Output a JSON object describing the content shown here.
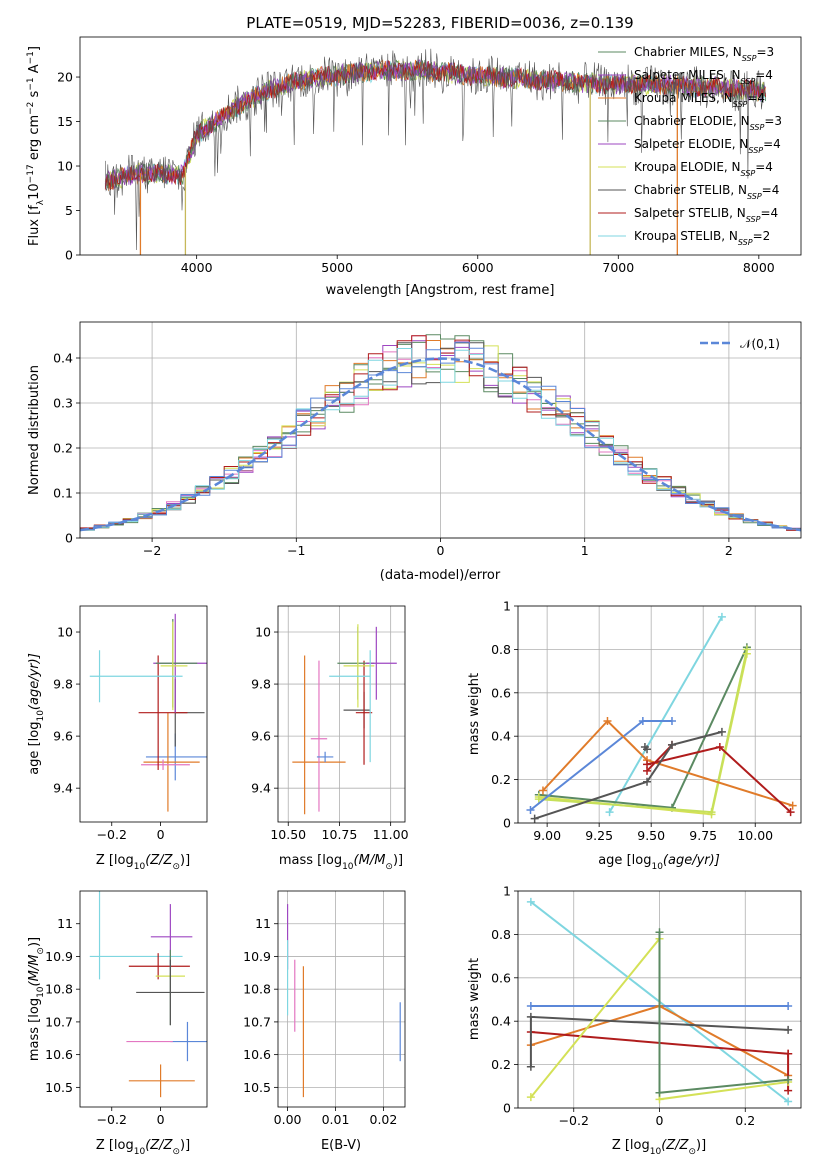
{
  "chart_data": [
    {
      "type": "line",
      "panel": "spectrum",
      "title": "PLATE=0519, MJD=52283, FIBERID=0036, z=0.139",
      "xlabel": "wavelength [Angstrom, rest frame]",
      "ylabel": "Flux [f",
      "ylabel_parts": [
        "Flux [f",
        "λ",
        "10",
        "−17",
        " erg cm",
        "−2",
        " s",
        "−1",
        " A",
        "−1",
        "]"
      ],
      "xlim": [
        3170,
        8300
      ],
      "ylim": [
        0,
        24.5
      ],
      "xticks": [
        4000,
        5000,
        6000,
        7000,
        8000
      ],
      "yticks": [
        0,
        5,
        10,
        15,
        20
      ],
      "grid": false,
      "legend_position": "top-right",
      "legend": [
        {
          "name": "Chabrier MILES, N",
          "sub": "SSP",
          "suffix": "=3",
          "color": "#5b8a62"
        },
        {
          "name": "Salpeter MILES, N",
          "sub": "SSP",
          "suffix": "=4",
          "color": "#9e47c2"
        },
        {
          "name": "Kroupa MILES, N",
          "sub": "SSP",
          "suffix": "=4",
          "color": "#e07b2a"
        },
        {
          "name": "Chabrier ELODIE, N",
          "sub": "SSP",
          "suffix": "=3",
          "color": "#5b8a62"
        },
        {
          "name": "Salpeter ELODIE, N",
          "sub": "SSP",
          "suffix": "=4",
          "color": "#9e47c2"
        },
        {
          "name": "Kroupa ELODIE, N",
          "sub": "SSP",
          "suffix": "=4",
          "color": "#d4e157"
        },
        {
          "name": "Chabrier STELIB, N",
          "sub": "SSP",
          "suffix": "=4",
          "color": "#555555"
        },
        {
          "name": "Salpeter STELIB, N",
          "sub": "SSP",
          "suffix": "=4",
          "color": "#b01c1c"
        },
        {
          "name": "Kroupa STELIB, N",
          "sub": "SSP",
          "suffix": "=2",
          "color": "#7fd6e0"
        }
      ],
      "continuum_points": [
        [
          3350,
          8.3
        ],
        [
          3600,
          9.2
        ],
        [
          3900,
          9.0
        ],
        [
          4000,
          13.5
        ],
        [
          4300,
          16.8
        ],
        [
          4500,
          18.5
        ],
        [
          4800,
          19.8
        ],
        [
          5200,
          20.6
        ],
        [
          5600,
          20.8
        ],
        [
          6000,
          20.2
        ],
        [
          6500,
          19.6
        ],
        [
          7000,
          19.2
        ],
        [
          7500,
          19.0
        ],
        [
          8050,
          18.4
        ]
      ],
      "drops": [
        3600,
        3920,
        6800,
        7420
      ]
    },
    {
      "type": "step",
      "panel": "residual-histogram",
      "xlabel": "(data-model)/error",
      "ylabel": "Normed distribution",
      "xlim": [
        -2.5,
        2.5
      ],
      "ylim": [
        0,
        0.48
      ],
      "xticks": [
        -2,
        -1,
        0,
        1,
        2
      ],
      "yticks": [
        0.0,
        0.1,
        0.2,
        0.3,
        0.4
      ],
      "grid": true,
      "legend_position": "top-right",
      "legend_label": "𝒩(0,1)",
      "gaussian_color": "#5b87d8",
      "histogram_colors": [
        "#5b8a62",
        "#9e47c2",
        "#e07b2a",
        "#5b8a62",
        "#e377c2",
        "#d4e157",
        "#555555",
        "#b01c1c",
        "#7fd6e0",
        "#5b87d8"
      ]
    },
    {
      "type": "errorbar",
      "panel": "age-vs-Z",
      "xlabel": "Z [log",
      "xlabel_parts": [
        "Z [log",
        "10",
        "(Z/Z",
        "⊙",
        ")]"
      ],
      "ylabel_parts": [
        "age  [log",
        "10",
        "(age/yr)]"
      ],
      "xlim": [
        -0.33,
        0.19
      ],
      "ylim": [
        9.27,
        10.1
      ],
      "xticks": [
        -0.2,
        0.0
      ],
      "yticks": [
        9.4,
        9.6,
        9.8,
        10.0
      ],
      "grid": false,
      "points": [
        {
          "x": 0.06,
          "y": 9.52,
          "xerr": [
            0.12,
            0.13
          ],
          "yerr": [
            0.09,
            0.09
          ],
          "color": "#5b87d8"
        },
        {
          "x": 0.03,
          "y": 9.5,
          "xerr": [
            0.1,
            0.13
          ],
          "yerr": [
            0.19,
            0.19
          ],
          "color": "#e07b2a"
        },
        {
          "x": 0.01,
          "y": 9.49,
          "xerr": [
            0.09,
            0.11
          ],
          "yerr": [
            0.02,
            0.02
          ],
          "color": "#e377c2"
        },
        {
          "x": 0.06,
          "y": 9.69,
          "xerr": [
            0.0,
            0.12
          ],
          "yerr": [
            0.13,
            0.13
          ],
          "color": "#555555"
        },
        {
          "x": -0.01,
          "y": 9.69,
          "xerr": [
            0.08,
            0.12
          ],
          "yerr": [
            0.22,
            0.22
          ],
          "color": "#b01c1c"
        },
        {
          "x": 0.06,
          "y": 9.88,
          "xerr": [
            0.09,
            0.13
          ],
          "yerr": [
            0.19,
            0.19
          ],
          "color": "#9e47c2"
        },
        {
          "x": 0.05,
          "y": 9.88,
          "xerr": [
            0.07,
            0.1
          ],
          "yerr": [
            0.17,
            0.17
          ],
          "color": "#5b8a62"
        },
        {
          "x": 0.05,
          "y": 9.87,
          "xerr": [
            0.05,
            0.06
          ],
          "yerr": [
            0.17,
            0.17
          ],
          "color": "#d4e157"
        },
        {
          "x": -0.25,
          "y": 9.83,
          "xerr": [
            0.04,
            0.34
          ],
          "yerr": [
            0.1,
            0.1
          ],
          "color": "#7fd6e0"
        }
      ]
    },
    {
      "type": "errorbar",
      "panel": "age-vs-mass",
      "xlabel_parts": [
        "mass [log",
        "10",
        "(M/M",
        "⊙",
        ")]"
      ],
      "xlim": [
        10.45,
        11.07
      ],
      "ylim": [
        9.27,
        10.1
      ],
      "xticks": [
        10.5,
        10.75,
        11.0
      ],
      "xtick_labels": [
        "10.50",
        "10.75",
        "11.00"
      ],
      "yticks": [
        9.4,
        9.6,
        9.8,
        10.0
      ],
      "grid": true,
      "points": [
        {
          "x": 10.58,
          "y": 9.5,
          "xerr": [
            0.06,
            0.2
          ],
          "yerr": [
            0.2,
            0.41
          ],
          "color": "#e07b2a"
        },
        {
          "x": 10.65,
          "y": 9.59,
          "xerr": [
            0.04,
            0.04
          ],
          "yerr": [
            0.28,
            0.3
          ],
          "color": "#e377c2"
        },
        {
          "x": 10.68,
          "y": 9.52,
          "xerr": [
            0.04,
            0.04
          ],
          "yerr": [
            0.02,
            0.02
          ],
          "color": "#5b87d8"
        },
        {
          "x": 10.87,
          "y": 9.7,
          "xerr": [
            0.1,
            0.03
          ],
          "yerr": [
            0.07,
            0.07
          ],
          "color": "#555555"
        },
        {
          "x": 10.87,
          "y": 9.69,
          "xerr": [
            0.04,
            0.04
          ],
          "yerr": [
            0.2,
            0.2
          ],
          "color": "#b01c1c"
        },
        {
          "x": 10.84,
          "y": 9.88,
          "xerr": [
            0.1,
            0.08
          ],
          "yerr": [
            0.14,
            0.14
          ],
          "color": "#5b8a62"
        },
        {
          "x": 10.84,
          "y": 9.87,
          "xerr": [
            0.07,
            0.08
          ],
          "yerr": [
            0.16,
            0.16
          ],
          "color": "#d4e157"
        },
        {
          "x": 10.93,
          "y": 9.88,
          "xerr": [
            0.05,
            0.1
          ],
          "yerr": [
            0.14,
            0.14
          ],
          "color": "#9e47c2"
        },
        {
          "x": 10.9,
          "y": 9.83,
          "xerr": [
            0.2,
            0.0
          ],
          "yerr": [
            0.33,
            0.1
          ],
          "color": "#7fd6e0"
        }
      ]
    },
    {
      "type": "line",
      "panel": "mass-weight-vs-age",
      "xlabel_parts": [
        "age  [log",
        "10",
        "(age/yr)]"
      ],
      "ylabel": "mass weight",
      "xlim": [
        8.86,
        10.22
      ],
      "ylim": [
        0.0,
        1.0
      ],
      "xticks": [
        9.0,
        9.25,
        9.5,
        9.75,
        10.0
      ],
      "xtick_labels": [
        "9.00",
        "9.25",
        "9.50",
        "9.75",
        "10.00"
      ],
      "yticks": [
        0.0,
        0.2,
        0.4,
        0.6,
        0.8,
        1.0
      ],
      "grid": true,
      "series": [
        {
          "x": [
            9.3,
            9.84
          ],
          "y": [
            0.05,
            0.95
          ],
          "color": "#7fd6e0"
        },
        {
          "x": [
            8.96,
            9.6,
            9.96
          ],
          "y": [
            0.13,
            0.07,
            0.81
          ],
          "color": "#5b8a62"
        },
        {
          "x": [
            8.96,
            9.79,
            9.96
          ],
          "y": [
            0.12,
            0.04,
            0.78
          ],
          "color": "#d4e157"
        },
        {
          "x": [
            8.96,
            9.79,
            9.96
          ],
          "y": [
            0.11,
            0.05,
            0.8
          ],
          "color": "#c6e05a"
        },
        {
          "x": [
            8.92,
            9.46,
            9.6
          ],
          "y": [
            0.06,
            0.47,
            0.47
          ],
          "color": "#5b87d8"
        },
        {
          "x": [
            8.98,
            9.29,
            9.48,
            10.18
          ],
          "y": [
            0.15,
            0.47,
            0.29,
            0.08
          ],
          "color": "#e07b2a"
        },
        {
          "x": [
            9.48,
            9.83,
            10.17
          ],
          "y": [
            0.27,
            0.35,
            0.05
          ],
          "color": "#b01c1c"
        },
        {
          "x": [
            9.48,
            9.6
          ],
          "y": [
            0.24,
            0.36
          ],
          "color": "#b01c1c"
        },
        {
          "x": [
            8.94,
            9.48,
            9.6,
            9.84
          ],
          "y": [
            0.02,
            0.19,
            0.36,
            0.42
          ],
          "color": "#555555"
        },
        {
          "x": [
            9.47,
            9.48
          ],
          "y": [
            0.35,
            0.34
          ],
          "color": "#555555"
        }
      ]
    },
    {
      "type": "errorbar",
      "panel": "mass-vs-Z",
      "xlabel_parts": [
        "Z [log",
        "10",
        "(Z/Z",
        "⊙",
        ")]"
      ],
      "ylabel_parts": [
        "mass [log",
        "10",
        "(M/M",
        "⊙",
        ")]"
      ],
      "xlim": [
        -0.33,
        0.19
      ],
      "ylim": [
        10.44,
        11.1
      ],
      "xticks": [
        -0.2,
        0.0
      ],
      "yticks": [
        10.5,
        10.6,
        10.7,
        10.8,
        10.9,
        11.0
      ],
      "grid": false,
      "points": [
        {
          "x": -0.25,
          "y": 10.9,
          "xerr": [
            0.04,
            0.34
          ],
          "yerr": [
            0.07,
            0.24
          ],
          "color": "#7fd6e0"
        },
        {
          "x": 0.04,
          "y": 10.96,
          "xerr": [
            0.08,
            0.09
          ],
          "yerr": [
            0.1,
            0.1
          ],
          "color": "#9e47c2"
        },
        {
          "x": -0.01,
          "y": 10.87,
          "xerr": [
            0.12,
            0.13
          ],
          "yerr": [
            0.04,
            0.04
          ],
          "color": "#b01c1c"
        },
        {
          "x": 0.04,
          "y": 10.84,
          "xerr": [
            0.06,
            0.06
          ],
          "yerr": [
            0.01,
            0.01
          ],
          "color": "#d4e157"
        },
        {
          "x": 0.04,
          "y": 10.84,
          "xerr": [
            0.0,
            0.0
          ],
          "yerr": [
            0.15,
            0.08
          ],
          "color": "#5b8a62"
        },
        {
          "x": 0.04,
          "y": 10.79,
          "xerr": [
            0.14,
            0.14
          ],
          "yerr": [
            0.1,
            0.1
          ],
          "color": "#555555"
        },
        {
          "x": 0.11,
          "y": 10.64,
          "xerr": [
            0.07,
            0.08
          ],
          "yerr": [
            0.06,
            0.06
          ],
          "color": "#5b87d8"
        },
        {
          "x": -0.01,
          "y": 10.64,
          "xerr": [
            0.13,
            0.06
          ],
          "yerr": [
            0.0,
            0.0
          ],
          "color": "#e377c2"
        },
        {
          "x": 0.0,
          "y": 10.52,
          "xerr": [
            0.13,
            0.14
          ],
          "yerr": [
            0.05,
            0.05
          ],
          "color": "#e07b2a"
        }
      ]
    },
    {
      "type": "errorbar",
      "panel": "mass-vs-ebv",
      "xlabel": "E(B-V)",
      "xlim": [
        -0.002,
        0.0245
      ],
      "ylim": [
        10.44,
        11.1
      ],
      "xticks": [
        0.0,
        0.01,
        0.02
      ],
      "xtick_labels": [
        "0.00",
        "0.01",
        "0.02"
      ],
      "yticks": [
        10.5,
        10.6,
        10.7,
        10.8,
        10.9,
        11.0
      ],
      "grid": true,
      "points": [
        {
          "x": 0.0,
          "y": 10.96,
          "xerr": [
            0,
            0
          ],
          "yerr": [
            0.1,
            0.1
          ],
          "color": "#9e47c2"
        },
        {
          "x": 0.0,
          "y": 10.85,
          "xerr": [
            0,
            0
          ],
          "yerr": [
            0.13,
            0.1
          ],
          "color": "#7fd6e0"
        },
        {
          "x": 0.0015,
          "y": 10.73,
          "xerr": [
            0,
            0
          ],
          "yerr": [
            0.06,
            0.16
          ],
          "color": "#e377c2"
        },
        {
          "x": 0.0033,
          "y": 10.67,
          "xerr": [
            0,
            0
          ],
          "yerr": [
            0.2,
            0.2
          ],
          "color": "#e07b2a"
        },
        {
          "x": 0.0235,
          "y": 10.67,
          "xerr": [
            0,
            0
          ],
          "yerr": [
            0.09,
            0.09
          ],
          "color": "#5b87d8"
        }
      ]
    },
    {
      "type": "line",
      "panel": "mass-weight-vs-Z",
      "xlabel_parts": [
        "Z [log",
        "10",
        "(Z/Z",
        "⊙",
        ")]"
      ],
      "ylabel": "mass weight",
      "xlim": [
        -0.33,
        0.33
      ],
      "ylim": [
        0.0,
        1.0
      ],
      "xticks": [
        -0.2,
        0.0,
        0.2
      ],
      "yticks": [
        0.0,
        0.2,
        0.4,
        0.6,
        0.8,
        1.0
      ],
      "grid": true,
      "series": [
        {
          "x": [
            -0.3,
            0.3
          ],
          "y": [
            0.95,
            0.03
          ],
          "color": "#7fd6e0"
        },
        {
          "x": [
            -0.3,
            0.3
          ],
          "y": [
            0.47,
            0.47
          ],
          "color": "#5b87d8"
        },
        {
          "x": [
            -0.3,
            0.0,
            0.3
          ],
          "y": [
            0.29,
            0.47,
            0.15
          ],
          "color": "#e07b2a"
        },
        {
          "x": [
            -0.3,
            0.3
          ],
          "y": [
            0.35,
            0.25
          ],
          "color": "#b01c1c"
        },
        {
          "x": [
            0.3,
            0.3
          ],
          "y": [
            0.25,
            0.08
          ],
          "color": "#b01c1c"
        },
        {
          "x": [
            -0.3,
            -0.3,
            0.3
          ],
          "y": [
            0.19,
            0.42,
            0.36
          ],
          "color": "#555555"
        },
        {
          "x": [
            -0.3,
            0.0,
            0.0,
            0.3
          ],
          "y": [
            0.05,
            0.78,
            0.04,
            0.12
          ],
          "color": "#d4e157"
        },
        {
          "x": [
            0.0,
            0.0,
            0.3
          ],
          "y": [
            0.81,
            0.07,
            0.13
          ],
          "color": "#5b8a62"
        }
      ]
    }
  ]
}
